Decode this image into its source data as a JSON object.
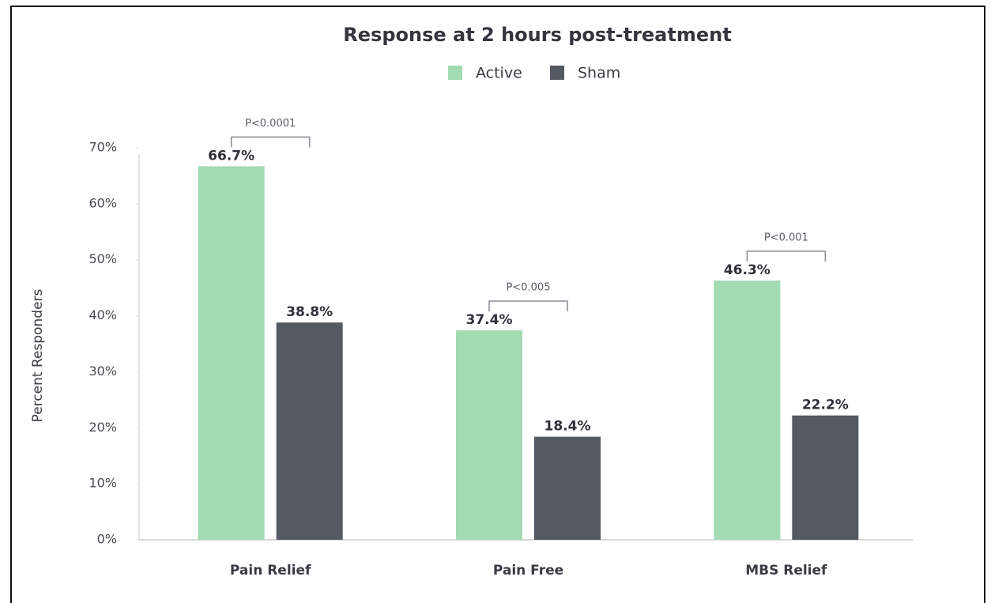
{
  "chart_data": {
    "type": "bar",
    "title": "Response at 2 hours post-treatment",
    "ylabel": "Percent Responders",
    "categories": [
      "Pain Relief",
      "Pain Free",
      "MBS Relief"
    ],
    "series": [
      {
        "name": "Active",
        "color": "#a3dbb3",
        "values": [
          66.7,
          37.4,
          46.3
        ],
        "value_labels": [
          "66.7%",
          "37.4%",
          "46.3%"
        ]
      },
      {
        "name": "Sham",
        "color": "#555962",
        "values": [
          38.8,
          18.4,
          22.2
        ],
        "value_labels": [
          "38.8%",
          "18.4%",
          "22.2%"
        ]
      }
    ],
    "annotations": [
      "P<0.0001",
      "P<0.005",
      "P<0.001"
    ],
    "ylim": [
      0,
      70
    ],
    "yticks": [
      {
        "value": 0,
        "label": "0%"
      },
      {
        "value": 10,
        "label": "10%"
      },
      {
        "value": 20,
        "label": "20%"
      },
      {
        "value": 30,
        "label": "30%"
      },
      {
        "value": 40,
        "label": "40%"
      },
      {
        "value": 50,
        "label": "50%"
      },
      {
        "value": 60,
        "label": "60%"
      },
      {
        "value": 70,
        "label": "70%"
      }
    ],
    "legend": "top"
  }
}
